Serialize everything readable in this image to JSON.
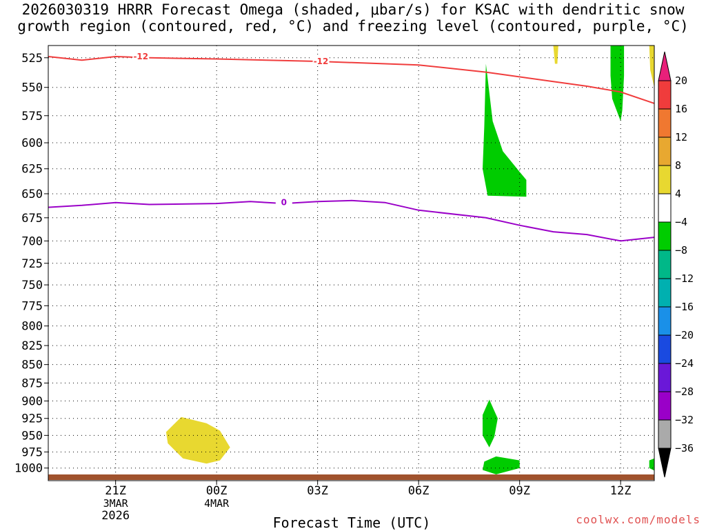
{
  "chart_data": {
    "type": "heatmap",
    "title": "2026030319 HRRR Forecast Omega (shaded, μbar/s) for KSAC with dendritic snow\ngrowth region (contoured, red, °C) and freezing level (contoured, purple, °C)",
    "xlabel": "Forecast Time (UTC)",
    "ylabel": "",
    "credit": "coolwx.com/models",
    "x_ticks": [
      {
        "label": "21Z",
        "sub1": "3MAR",
        "sub2": "2026",
        "hour": 2
      },
      {
        "label": "00Z",
        "sub1": "4MAR",
        "sub2": "",
        "hour": 5
      },
      {
        "label": "03Z",
        "sub1": "",
        "sub2": "",
        "hour": 8
      },
      {
        "label": "06Z",
        "sub1": "",
        "sub2": "",
        "hour": 11
      },
      {
        "label": "09Z",
        "sub1": "",
        "sub2": "",
        "hour": 14
      },
      {
        "label": "12Z",
        "sub1": "",
        "sub2": "",
        "hour": 17
      }
    ],
    "x_range_hours": [
      0,
      18
    ],
    "y_levels_hpa": [
      525,
      550,
      575,
      600,
      625,
      650,
      675,
      700,
      725,
      750,
      775,
      800,
      825,
      850,
      875,
      900,
      925,
      950,
      975,
      1000
    ],
    "y_range_hpa": [
      515,
      1020
    ],
    "colorbar": {
      "labels": [
        "20",
        "16",
        "12",
        "8",
        "4",
        "−4",
        "−8",
        "−12",
        "−16",
        "−20",
        "−24",
        "−28",
        "−32",
        "−36"
      ],
      "colors": [
        "#f03c3c",
        "#f07830",
        "#e8a830",
        "#e8d830",
        "#ffffff",
        "#00cc00",
        "#00b888",
        "#00b0b0",
        "#1a90e8",
        "#1a4ae0",
        "#6a18d8",
        "#9a00c8",
        "#aaaaaa"
      ],
      "top_arrow_color": "#e8207a",
      "bottom_arrow_color": "#000000"
    },
    "contours": [
      {
        "name": "-12",
        "color": "#f03c3c",
        "points": [
          [
            0,
            524
          ],
          [
            1,
            527
          ],
          [
            2,
            524
          ],
          [
            3,
            525
          ],
          [
            5,
            526
          ],
          [
            8,
            528
          ],
          [
            11,
            531
          ],
          [
            13,
            537
          ],
          [
            15,
            545
          ],
          [
            16,
            549
          ],
          [
            17,
            554
          ],
          [
            18,
            564
          ]
        ],
        "labels": [
          {
            "text": "-12",
            "hour": 2.75,
            "p": 524
          },
          {
            "text": "-12",
            "hour": 8.1,
            "p": 528
          }
        ]
      },
      {
        "name": "0",
        "color": "#9a00c8",
        "points": [
          [
            0,
            664
          ],
          [
            1,
            662
          ],
          [
            2,
            659
          ],
          [
            3,
            661
          ],
          [
            5,
            660
          ],
          [
            6,
            658
          ],
          [
            7,
            660
          ],
          [
            8,
            658
          ],
          [
            9,
            657
          ],
          [
            10,
            659
          ],
          [
            11,
            667
          ],
          [
            13,
            675
          ],
          [
            14,
            683
          ],
          [
            15,
            690
          ],
          [
            16,
            693
          ],
          [
            17,
            700
          ],
          [
            18,
            696
          ]
        ],
        "labels": [
          {
            "text": "0",
            "hour": 7.0,
            "p": 659
          }
        ]
      }
    ],
    "shaded_regions": [
      {
        "value_range": [
          -8,
          -4
        ],
        "color": "#00cc00",
        "points": [
          [
            13.0,
            530
          ],
          [
            13.2,
            580
          ],
          [
            13.5,
            608
          ],
          [
            14.0,
            628
          ],
          [
            14.2,
            636
          ],
          [
            14.2,
            653
          ],
          [
            13.05,
            652
          ],
          [
            12.9,
            625
          ],
          [
            12.95,
            585
          ]
        ]
      },
      {
        "value_range": [
          -8,
          -4
        ],
        "color": "#00cc00",
        "points": [
          [
            16.7,
            515
          ],
          [
            17.1,
            515
          ],
          [
            17.1,
            540
          ],
          [
            17.05,
            570
          ],
          [
            17.0,
            580
          ],
          [
            16.75,
            560
          ],
          [
            16.7,
            540
          ]
        ]
      },
      {
        "value_range": [
          -8,
          -4
        ],
        "color": "#00cc00",
        "points": [
          [
            13.1,
            898
          ],
          [
            13.35,
            925
          ],
          [
            13.25,
            952
          ],
          [
            13.1,
            968
          ],
          [
            12.9,
            950
          ],
          [
            12.9,
            920
          ]
        ]
      },
      {
        "value_range": [
          -8,
          -4
        ],
        "color": "#00cc00",
        "points": [
          [
            12.95,
            990
          ],
          [
            13.3,
            982
          ],
          [
            14.0,
            988
          ],
          [
            14.0,
            1000
          ],
          [
            13.3,
            1010
          ],
          [
            12.9,
            1003
          ]
        ]
      },
      {
        "value_range": [
          -8,
          -4
        ],
        "color": "#00cc00",
        "points": [
          [
            17.85,
            988
          ],
          [
            18.0,
            985
          ],
          [
            18.0,
            1004
          ],
          [
            17.85,
            1000
          ]
        ]
      },
      {
        "value_range": [
          4,
          8
        ],
        "color": "#e8d830",
        "points": [
          [
            3.5,
            945
          ],
          [
            3.95,
            923
          ],
          [
            4.7,
            932
          ],
          [
            5.1,
            943
          ],
          [
            5.4,
            968
          ],
          [
            5.1,
            988
          ],
          [
            4.7,
            993
          ],
          [
            4.0,
            985
          ],
          [
            3.55,
            962
          ]
        ]
      },
      {
        "value_range": [
          4,
          8
        ],
        "color": "#e8d830",
        "points": [
          [
            15.0,
            515
          ],
          [
            15.15,
            515
          ],
          [
            15.12,
            530
          ],
          [
            15.05,
            530
          ]
        ]
      },
      {
        "value_range": [
          4,
          8
        ],
        "color": "#e8d830",
        "points": [
          [
            17.85,
            515
          ],
          [
            18.0,
            515
          ],
          [
            18.0,
            550
          ],
          [
            17.88,
            535
          ]
        ]
      }
    ]
  }
}
